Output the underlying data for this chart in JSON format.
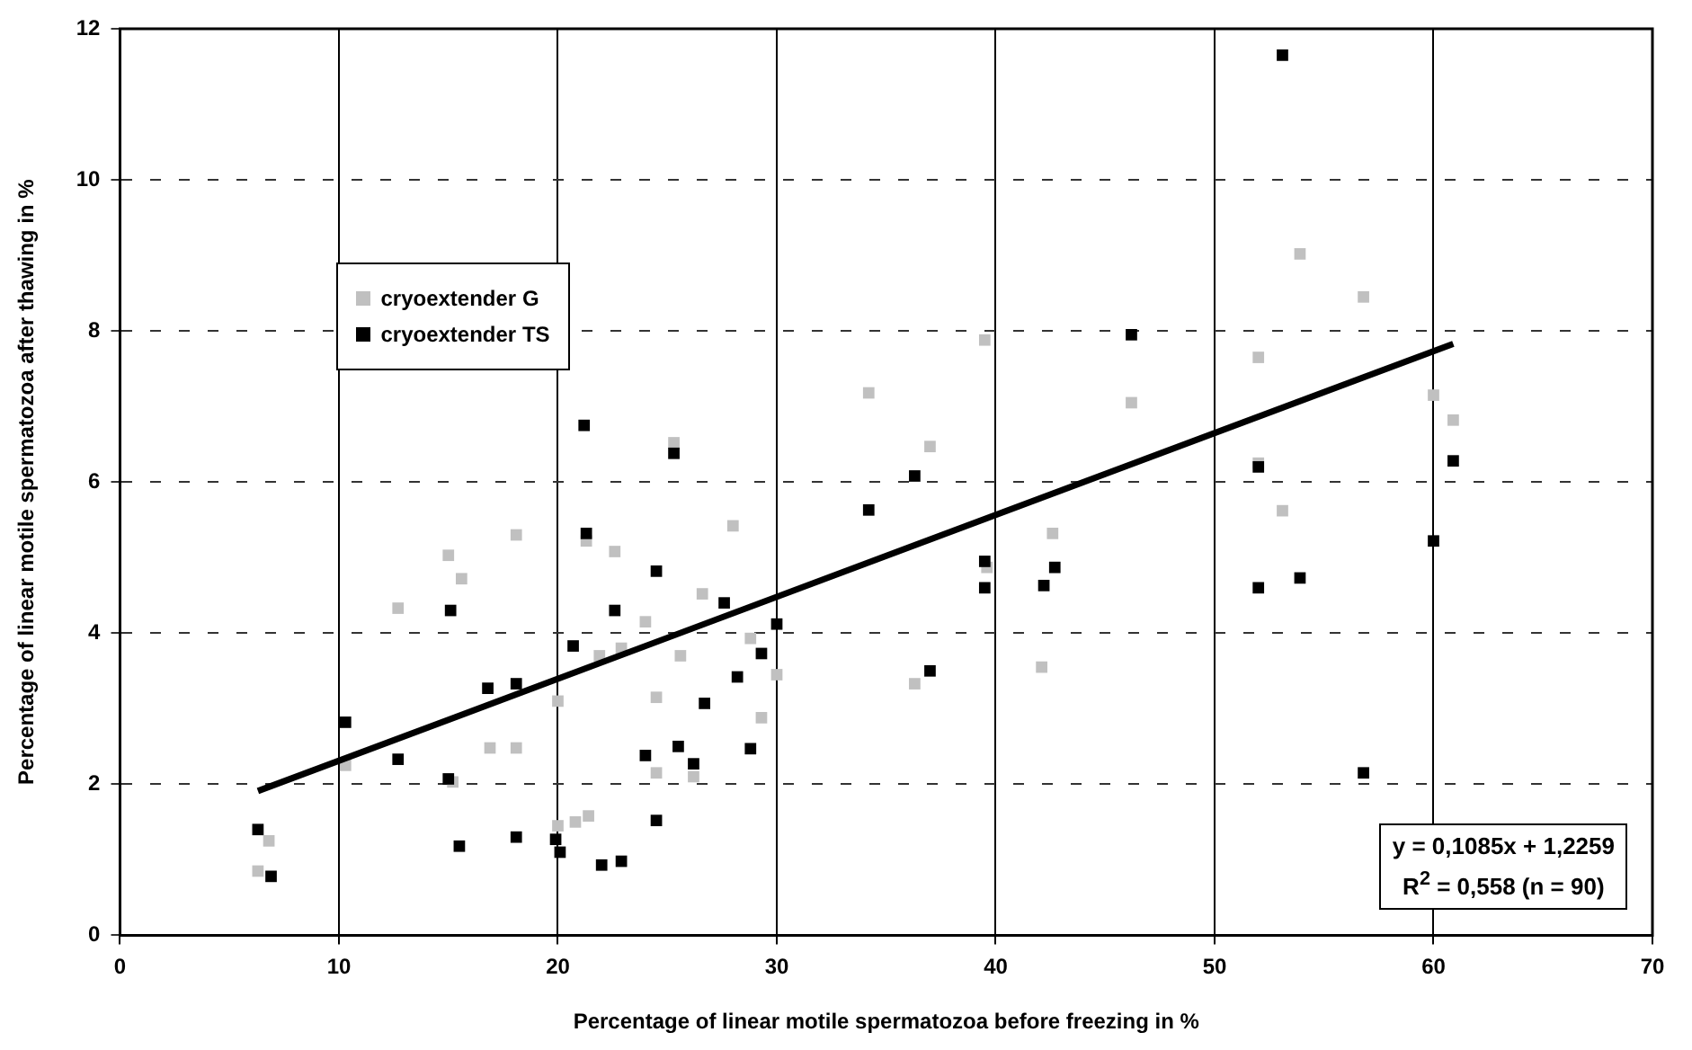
{
  "chart_data": {
    "type": "scatter",
    "xlabel": "Percentage of linear motile spermatozoa before freezing in %",
    "ylabel": "Percentage of linear motile spermatozoa after thawing in %",
    "xlim": [
      0,
      70
    ],
    "xticks": [
      0,
      10,
      20,
      30,
      40,
      50,
      60,
      70
    ],
    "ylim": [
      0,
      12
    ],
    "yticks": [
      0,
      2,
      4,
      6,
      8,
      10,
      12
    ],
    "grid": true,
    "legend": "top left",
    "marker": "square",
    "annotations": [
      "y = 0,1085x + 1,2259",
      "R$^{2}$ = 0,558 (n = 90)"
    ],
    "series": [
      {
        "name": "cryoextender G",
        "color": "#c0c0c0",
        "x": [
          6.3,
          6.8,
          10.3,
          12.7,
          15.0,
          15.2,
          15.6,
          16.9,
          18.1,
          18.1,
          20.0,
          20.0,
          20.8,
          21.3,
          21.4,
          21.9,
          22.6,
          22.9,
          24.0,
          24.5,
          24.5,
          25.3,
          25.6,
          26.2,
          26.6,
          28.0,
          28.8,
          29.3,
          30.0,
          34.2,
          36.3,
          37.0,
          39.5,
          39.6,
          42.1,
          42.6,
          46.2,
          52.0,
          52.0,
          53.1,
          53.9,
          56.8,
          60.0,
          60.9
        ],
        "values": [
          0.85,
          1.25,
          2.25,
          4.33,
          5.03,
          2.03,
          4.72,
          2.48,
          5.3,
          2.48,
          3.1,
          1.45,
          1.5,
          5.22,
          1.58,
          3.7,
          5.08,
          3.8,
          4.15,
          3.15,
          2.15,
          6.52,
          3.7,
          2.1,
          4.52,
          5.42,
          3.93,
          2.88,
          3.45,
          7.18,
          3.33,
          6.47,
          7.88,
          4.87,
          3.55,
          5.32,
          7.05,
          7.65,
          6.25,
          5.62,
          9.02,
          8.45,
          7.15,
          6.82
        ]
      },
      {
        "name": "cryoextender TS",
        "color": "#000000",
        "x": [
          6.3,
          6.9,
          10.3,
          12.7,
          15.0,
          15.1,
          15.5,
          16.8,
          18.1,
          18.1,
          19.9,
          20.1,
          20.7,
          21.2,
          21.3,
          22.0,
          22.6,
          22.9,
          24.0,
          24.5,
          24.5,
          25.3,
          25.5,
          26.2,
          26.7,
          27.6,
          28.2,
          28.8,
          29.3,
          30.0,
          34.2,
          36.3,
          37.0,
          39.5,
          39.5,
          42.2,
          42.7,
          46.2,
          52.0,
          52.0,
          53.1,
          53.9,
          56.8,
          60.0,
          60.9
        ],
        "values": [
          1.4,
          0.78,
          2.82,
          2.33,
          2.07,
          4.3,
          1.18,
          3.27,
          3.33,
          1.3,
          1.27,
          1.1,
          3.83,
          6.75,
          5.32,
          0.93,
          4.3,
          0.98,
          2.38,
          4.82,
          1.52,
          6.38,
          2.5,
          2.27,
          3.07,
          4.4,
          3.42,
          2.47,
          3.73,
          4.12,
          5.63,
          6.08,
          3.5,
          4.95,
          4.6,
          4.63,
          4.87,
          7.95,
          6.2,
          4.6,
          11.65,
          4.73,
          2.15,
          5.22,
          6.28
        ]
      },
      {
        "type": "line",
        "marker": "none",
        "color": "#000000",
        "x": [
          6.3,
          60.9
        ],
        "values": [
          1.91,
          7.83
        ]
      }
    ]
  }
}
